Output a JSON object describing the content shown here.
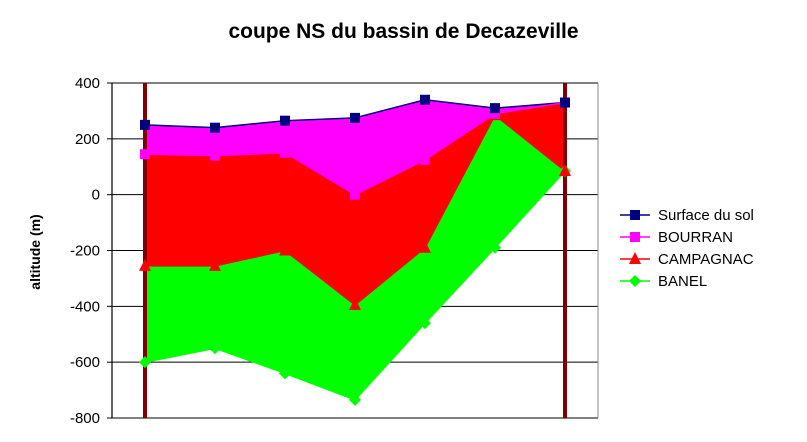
{
  "chart_data": {
    "type": "area",
    "title": "coupe NS du bassin de Decazeville",
    "xlabel": "",
    "ylabel": "altitude (m)",
    "ylim": [
      -800,
      400
    ],
    "yticks": [
      400,
      200,
      0,
      -200,
      -400,
      -600,
      -800
    ],
    "x": [
      1,
      2,
      3,
      4,
      5,
      6,
      7
    ],
    "grid": "horizontal",
    "legend_position": "right",
    "series": [
      {
        "name": "Surface du sol",
        "color": "#000080",
        "marker": "square",
        "values": [
          250,
          240,
          265,
          275,
          340,
          310,
          330
        ]
      },
      {
        "name": "BOURRAN",
        "color": "#ff00ff",
        "marker": "square",
        "values": [
          145,
          140,
          150,
          0,
          125,
          290,
          330
        ]
      },
      {
        "name": "CAMPAGNAC",
        "color": "#ff0000",
        "marker": "triangle",
        "values": [
          -255,
          -255,
          -200,
          -395,
          -190,
          285,
          85
        ]
      },
      {
        "name": "BANEL",
        "color": "#00ff00",
        "marker": "diamond",
        "values": [
          -600,
          -550,
          -640,
          -735,
          -460,
          -190,
          85
        ]
      }
    ],
    "verticals": {
      "color": "#800000",
      "positions": [
        1,
        7
      ]
    }
  }
}
